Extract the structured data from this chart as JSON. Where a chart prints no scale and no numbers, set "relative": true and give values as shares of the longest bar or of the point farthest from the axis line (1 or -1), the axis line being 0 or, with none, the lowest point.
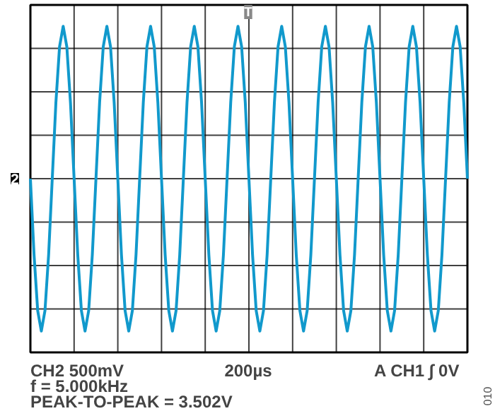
{
  "chart_data": {
    "type": "line",
    "relative": true,
    "grid": true,
    "categories": [
      null,
      null,
      null,
      null,
      null,
      null,
      null,
      null,
      null,
      null,
      null,
      null,
      null,
      null,
      null,
      null,
      null,
      null,
      null,
      null,
      null,
      null,
      null,
      null,
      null,
      null,
      null,
      null,
      null,
      null,
      null,
      null,
      null,
      null,
      null,
      null,
      null,
      null,
      null,
      null,
      null,
      null,
      null,
      null,
      null,
      null,
      null,
      null,
      null,
      null,
      null,
      null,
      null,
      null,
      null,
      null,
      null,
      null,
      null,
      null,
      null,
      null,
      null,
      null,
      null,
      null,
      null,
      null,
      null,
      null,
      null,
      null,
      null,
      null,
      null,
      null,
      null,
      null,
      null,
      null,
      null,
      null,
      null,
      null,
      null,
      null,
      null,
      null,
      null,
      null,
      null,
      null,
      null,
      null,
      null,
      null,
      null,
      null,
      null,
      null,
      null,
      null,
      null,
      null,
      null,
      null,
      null,
      null,
      null,
      null,
      null,
      null,
      null,
      null,
      null,
      null,
      null,
      null,
      null,
      null,
      null
    ],
    "series": [
      {
        "color": "#1199cc",
        "values": [
          0,
          -0.5,
          -0.866,
          -1,
          -0.866,
          -0.5,
          0,
          0.5,
          0.866,
          1,
          0.866,
          0.5,
          0,
          -0.5,
          -0.866,
          -1,
          -0.866,
          -0.5,
          0,
          0.5,
          0.866,
          1,
          0.866,
          0.5,
          0,
          -0.5,
          -0.866,
          -1,
          -0.866,
          -0.5,
          0,
          0.5,
          0.866,
          1,
          0.866,
          0.5,
          0,
          -0.5,
          -0.866,
          -1,
          -0.866,
          -0.5,
          0,
          0.5,
          0.866,
          1,
          0.866,
          0.5,
          0,
          -0.5,
          -0.866,
          -1,
          -0.866,
          -0.5,
          0,
          0.5,
          0.866,
          1,
          0.866,
          0.5,
          0,
          -0.5,
          -0.866,
          -1,
          -0.866,
          -0.5,
          0,
          0.5,
          0.866,
          1,
          0.866,
          0.5,
          0,
          -0.5,
          -0.866,
          -1,
          -0.866,
          -0.5,
          0,
          0.5,
          0.866,
          1,
          0.866,
          0.5,
          0,
          -0.5,
          -0.866,
          -1,
          -0.866,
          -0.5,
          0,
          0.5,
          0.866,
          1,
          0.866,
          0.5,
          0,
          -0.5,
          -0.866,
          -1,
          -0.866,
          -0.5,
          0,
          0.5,
          0.866,
          1,
          0.866,
          0.5,
          0,
          -0.5,
          -0.866,
          -1,
          -0.866,
          -0.5,
          0,
          0.5,
          0.866,
          1,
          0.866,
          0.5,
          0
        ]
      }
    ],
    "annotations": [
      "CH2  500mV",
      "f = 5.000kHz",
      "PEAK-TO-PEAK = 3.502V",
      "200µs",
      "A  CH1 ∫ 0V",
      "2",
      "T",
      "010"
    ]
  }
}
